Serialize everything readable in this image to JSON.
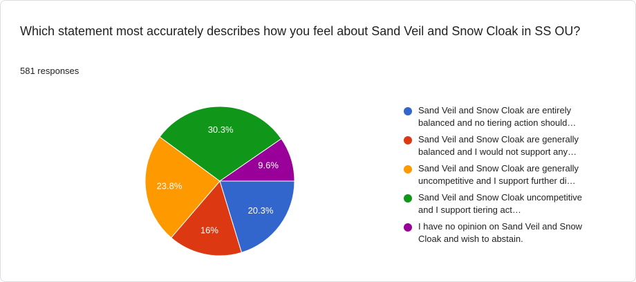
{
  "chart_data": {
    "type": "pie",
    "title": "Which statement most accurately describes how you feel about Sand Veil and Snow Cloak in SS OU?",
    "subtitle": "581 responses",
    "categories": [
      "Sand Veil and Snow Cloak are entirely balanced and no tiering action should…",
      "Sand Veil and Snow Cloak are generally balanced and I would not support any…",
      "Sand Veil and Snow Cloak are generally uncompetitive and I support further di…",
      "Sand Veil and Snow Cloak uncompetitive and I support tiering act…",
      "I have no opinion on Sand Veil and Snow Cloak and wish to abstain."
    ],
    "values": [
      20.3,
      16,
      23.8,
      30.3,
      9.6
    ],
    "value_labels": [
      "20.3%",
      "16%",
      "23.8%",
      "30.3%",
      "9.6%"
    ],
    "colors": [
      "#3366cc",
      "#dc3912",
      "#ff9900",
      "#109618",
      "#990099"
    ],
    "legend": "right"
  }
}
